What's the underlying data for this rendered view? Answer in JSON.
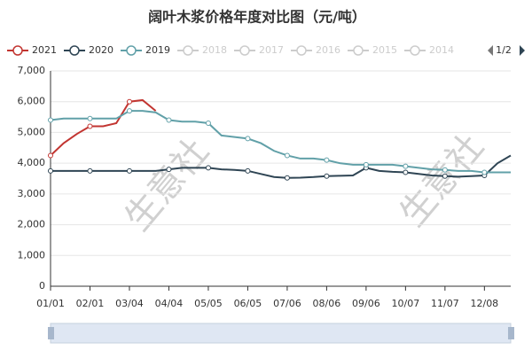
{
  "chart_data": {
    "type": "line",
    "title": "阔叶木浆价格年度对比图（元/吨）",
    "categories": [
      "01/01",
      null,
      null,
      "02/01",
      null,
      null,
      "03/04",
      null,
      null,
      "04/04",
      null,
      null,
      "05/05",
      null,
      null,
      "06/05",
      null,
      null,
      "07/06",
      null,
      null,
      "08/06",
      null,
      null,
      "09/06",
      null,
      null,
      "10/07",
      null,
      null,
      "11/07",
      null,
      null,
      "12/08",
      null,
      null
    ],
    "series": [
      {
        "name": "2021",
        "color": "#c23531",
        "values": [
          4250,
          4650,
          4950,
          5200,
          5200,
          5300,
          6000,
          6050,
          5700,
          null,
          null,
          null,
          null,
          null,
          null,
          null,
          null,
          null,
          null,
          null,
          null,
          null,
          null,
          null,
          null,
          null,
          null,
          null,
          null,
          null,
          null,
          null,
          null,
          null,
          null,
          null
        ]
      },
      {
        "name": "2020",
        "color": "#2f4554",
        "values": [
          3750,
          3750,
          3750,
          3750,
          3750,
          3750,
          3750,
          3750,
          3750,
          3800,
          3850,
          3850,
          3850,
          3800,
          3780,
          3750,
          3650,
          3550,
          3520,
          3530,
          3550,
          3580,
          3590,
          3600,
          3850,
          3750,
          3720,
          3700,
          3650,
          3600,
          3580,
          3560,
          3580,
          3600,
          4000,
          4250
        ]
      },
      {
        "name": "2019",
        "color": "#61a0a8",
        "values": [
          5400,
          5450,
          5450,
          5450,
          5450,
          5450,
          5700,
          5700,
          5650,
          5400,
          5350,
          5350,
          5300,
          4900,
          4850,
          4800,
          4650,
          4400,
          4250,
          4150,
          4150,
          4100,
          4000,
          3950,
          3950,
          3950,
          3950,
          3900,
          3850,
          3800,
          3780,
          3750,
          3750,
          3700,
          3700,
          3700
        ]
      }
    ],
    "inactive_legend": [
      "2018",
      "2017",
      "2016",
      "2015",
      "2014"
    ],
    "legend_page": "1/2",
    "watermark": [
      "生意社",
      "生意社"
    ],
    "ylim": [
      0,
      7000
    ],
    "yticks": [
      0,
      {
        "value": 1000,
        "label": "1,000"
      },
      {
        "value": 2000,
        "label": "2,000"
      },
      {
        "value": 3000,
        "label": "3,000"
      },
      {
        "value": 4000,
        "label": "4,000"
      },
      {
        "value": 5000,
        "label": "5,000"
      },
      {
        "value": 6000,
        "label": "6,000"
      },
      {
        "value": 7000,
        "label": "7,000"
      }
    ],
    "grid": true
  }
}
